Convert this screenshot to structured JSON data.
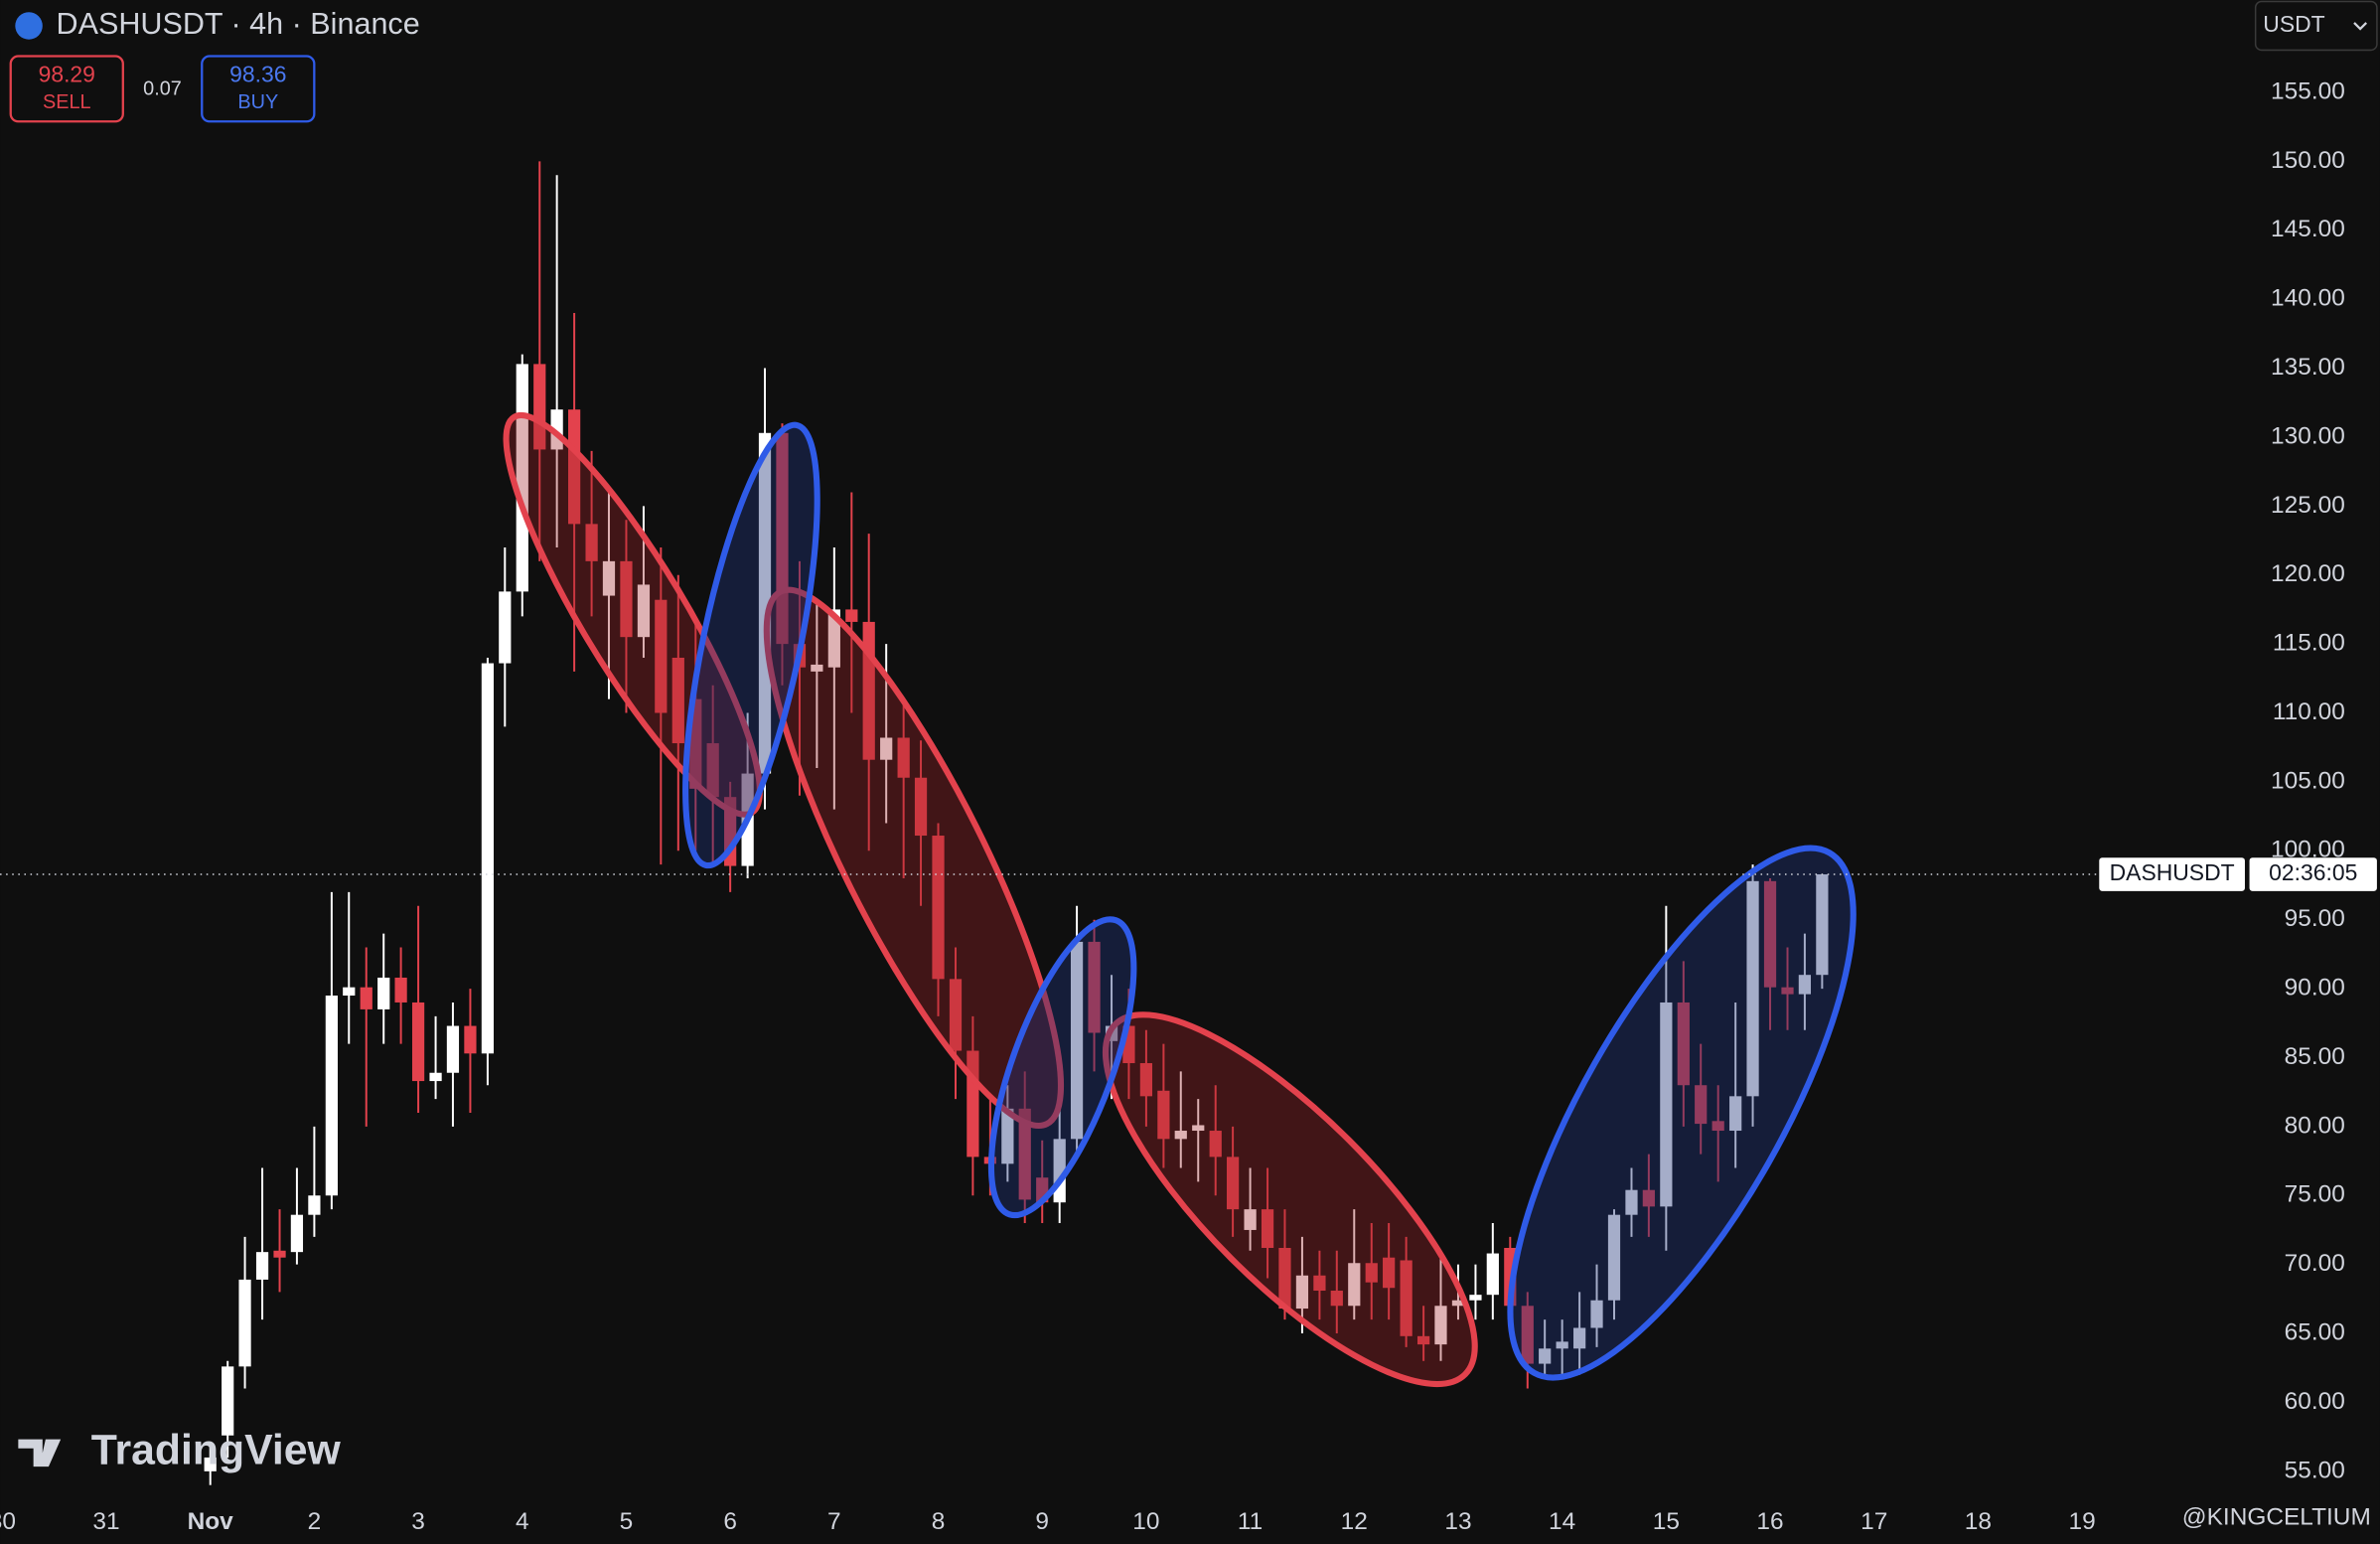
{
  "header": {
    "symbol": "DASHUSDT · 4h · Binance",
    "sell": {
      "price": 98.29,
      "label": "SELL"
    },
    "spread": 0.07,
    "buy": {
      "price": 98.36,
      "label": "BUY"
    },
    "currency": "USDT"
  },
  "chart_data": {
    "type": "candlestick",
    "up_color": "#ffffff",
    "down_color": "#e3424d",
    "x": [
      2,
      2.167,
      2.333,
      2.5,
      2.667,
      2.833,
      3,
      3.167,
      3.333,
      3.5,
      3.667,
      3.833,
      4,
      4.167,
      4.333,
      4.5,
      4.667,
      4.833,
      5,
      5.167,
      5.333,
      5.5,
      5.667,
      5.833,
      6,
      6.167,
      6.333,
      6.5,
      6.667,
      6.833,
      7,
      7.167,
      7.333,
      7.5,
      7.667,
      7.833,
      8,
      8.167,
      8.333,
      8.5,
      8.667,
      8.833,
      9,
      9.167,
      9.333,
      9.5,
      9.667,
      9.833,
      10,
      10.167,
      10.333,
      10.5,
      10.667,
      10.833,
      11,
      11.167,
      11.333,
      11.5,
      11.667,
      11.833,
      12,
      12.167,
      12.333,
      12.5,
      12.667,
      12.833,
      13,
      13.167,
      13.333,
      13.5,
      13.667,
      13.833,
      14,
      14.167,
      14.333,
      14.5,
      14.667,
      14.833,
      15,
      15.167,
      15.333,
      15.5,
      15.667,
      15.833,
      16,
      16.167,
      16.333,
      16.5,
      16.667,
      16.833,
      17,
      17.167,
      17.333,
      17.5
    ],
    "open": [
      55,
      57.6,
      62.6,
      68.9,
      71,
      70.9,
      73.6,
      75,
      89.5,
      90.1,
      88.5,
      90.8,
      89,
      83.3,
      83.9,
      87.3,
      85.3,
      113.6,
      118.8,
      135.3,
      129.1,
      132,
      123.7,
      118.5,
      121,
      115.5,
      118.2,
      114,
      111,
      107.8,
      103.9,
      98.9,
      105.6,
      130.3,
      115,
      113,
      113.3,
      117.5,
      116.6,
      106.6,
      108.2,
      105.3,
      101.1,
      90.7,
      85.5,
      77.8,
      77.3,
      81.3,
      76.3,
      74.5,
      79.1,
      93.4,
      86.2,
      87.3,
      84.6,
      82.6,
      79.1,
      79.7,
      79.7,
      77.8,
      72.5,
      74,
      71.2,
      66.8,
      69.2,
      68.1,
      67,
      70.1,
      70.5,
      70.3,
      64.8,
      64.2,
      67,
      67.4,
      67.8,
      71.2,
      67,
      62.8,
      63.9,
      63.9,
      65.4,
      67.4,
      73.6,
      75.4,
      74.2,
      89,
      83,
      80.4,
      79.7,
      82.2,
      97.8,
      90.1,
      89.6,
      91
    ],
    "high": [
      57,
      63,
      72,
      77,
      74,
      77,
      80,
      97,
      97,
      93,
      94,
      93,
      96,
      88,
      89,
      90,
      114,
      122,
      136,
      150,
      149,
      139,
      129,
      126,
      124,
      125,
      122,
      120,
      117,
      112,
      105,
      110,
      135,
      131,
      121,
      118,
      122,
      126,
      123,
      115,
      111,
      108,
      102,
      93,
      88,
      82,
      83,
      84,
      79,
      83,
      96,
      95,
      91,
      90,
      87,
      86,
      84,
      82,
      83,
      80,
      77,
      77,
      74,
      72,
      71,
      71,
      74,
      73,
      73,
      72,
      67,
      71,
      70,
      70,
      73,
      72,
      68,
      66,
      66,
      68,
      70,
      74,
      77,
      78,
      96,
      92,
      86,
      83,
      89,
      99,
      98,
      93,
      94,
      98.3
    ],
    "low": [
      54,
      56,
      61,
      66,
      68,
      70,
      72,
      74,
      86,
      80,
      86,
      86,
      81,
      82,
      80,
      81,
      83,
      109,
      117,
      121,
      122,
      113,
      117,
      111,
      110,
      114,
      99,
      100,
      100,
      99,
      97,
      98,
      103,
      112,
      104,
      106,
      103,
      110,
      100,
      102,
      98,
      96,
      88,
      82,
      75,
      75,
      76,
      73,
      73,
      73,
      78,
      84,
      82,
      82,
      80,
      77,
      77,
      76,
      75,
      72,
      71,
      69,
      66,
      65,
      66,
      65,
      66,
      66,
      66,
      64,
      63,
      63,
      66,
      66,
      66,
      66,
      61,
      62,
      62,
      62,
      64,
      66,
      72,
      72,
      71,
      80,
      78,
      76,
      77,
      80,
      87,
      87,
      87,
      90
    ],
    "close": [
      56,
      62.6,
      68.9,
      70.9,
      70.5,
      73.6,
      75,
      89.5,
      90.1,
      88.5,
      90.8,
      89,
      83.3,
      83.9,
      87.3,
      85.3,
      113.6,
      118.8,
      135.3,
      129.1,
      132,
      123.7,
      121,
      121,
      115.5,
      119.3,
      110,
      107.8,
      104.5,
      103.9,
      98.9,
      105.6,
      130.3,
      115,
      113.3,
      113.5,
      117.5,
      116.6,
      106.6,
      108.2,
      105.3,
      101.1,
      90.7,
      85.5,
      77.8,
      77.3,
      81.3,
      74.7,
      74.5,
      79.1,
      93.4,
      86.8,
      87.3,
      84.6,
      82.2,
      79.1,
      79.7,
      80.1,
      77.8,
      74,
      74,
      71.2,
      66.8,
      69.2,
      68.1,
      67,
      70.1,
      68.7,
      68.3,
      64.8,
      64.2,
      67,
      67.4,
      67.8,
      70.8,
      67,
      62.8,
      63.9,
      64.4,
      65.4,
      67.4,
      73.6,
      75.4,
      74.2,
      89,
      83,
      80.2,
      79.7,
      82.2,
      97.8,
      90.1,
      89.6,
      91,
      98.29
    ],
    "xlim": [
      -0.022,
      21.58
    ],
    "ylim": [
      52.7,
      161.7
    ],
    "xticks": [
      {
        "value": 0,
        "label": "30"
      },
      {
        "value": 1,
        "label": "31"
      },
      {
        "value": 2,
        "label": "Nov"
      },
      {
        "value": 3,
        "label": "2"
      },
      {
        "value": 4,
        "label": "3"
      },
      {
        "value": 5,
        "label": "4"
      },
      {
        "value": 6,
        "label": "5"
      },
      {
        "value": 7,
        "label": "6"
      },
      {
        "value": 8,
        "label": "7"
      },
      {
        "value": 9,
        "label": "8"
      },
      {
        "value": 10,
        "label": "9"
      },
      {
        "value": 11,
        "label": "10"
      },
      {
        "value": 12,
        "label": "11"
      },
      {
        "value": 13,
        "label": "12"
      },
      {
        "value": 14,
        "label": "13"
      },
      {
        "value": 15,
        "label": "14"
      },
      {
        "value": 16,
        "label": "15"
      },
      {
        "value": 17,
        "label": "16"
      },
      {
        "value": 18,
        "label": "17"
      },
      {
        "value": 19,
        "label": "18"
      },
      {
        "value": 20,
        "label": "19"
      }
    ],
    "yticks": [
      {
        "value": 55,
        "label": "55.00"
      },
      {
        "value": 60,
        "label": "60.00"
      },
      {
        "value": 65,
        "label": "65.00"
      },
      {
        "value": 70,
        "label": "70.00"
      },
      {
        "value": 75,
        "label": "75.00"
      },
      {
        "value": 80,
        "label": "80.00"
      },
      {
        "value": 85,
        "label": "85.00"
      },
      {
        "value": 90,
        "label": "90.00"
      },
      {
        "value": 95,
        "label": "95.00"
      },
      {
        "value": 100,
        "label": "100.00"
      },
      {
        "value": 105,
        "label": "105.00"
      },
      {
        "value": 110,
        "label": "110.00"
      },
      {
        "value": 115,
        "label": "115.00"
      },
      {
        "value": 120,
        "label": "120.00"
      },
      {
        "value": 125,
        "label": "125.00"
      },
      {
        "value": 130,
        "label": "130.00"
      },
      {
        "value": 135,
        "label": "135.00"
      },
      {
        "value": 140,
        "label": "140.00"
      },
      {
        "value": 145,
        "label": "145.00"
      },
      {
        "value": 150,
        "label": "150.00"
      },
      {
        "value": 155,
        "label": "155.00"
      }
    ],
    "price_line": {
      "value": 98.29,
      "label": "DASHUSDT",
      "countdown": "02:36:05"
    }
  },
  "logo": "TradingView",
  "watermark": "@KINGCELTIUM"
}
